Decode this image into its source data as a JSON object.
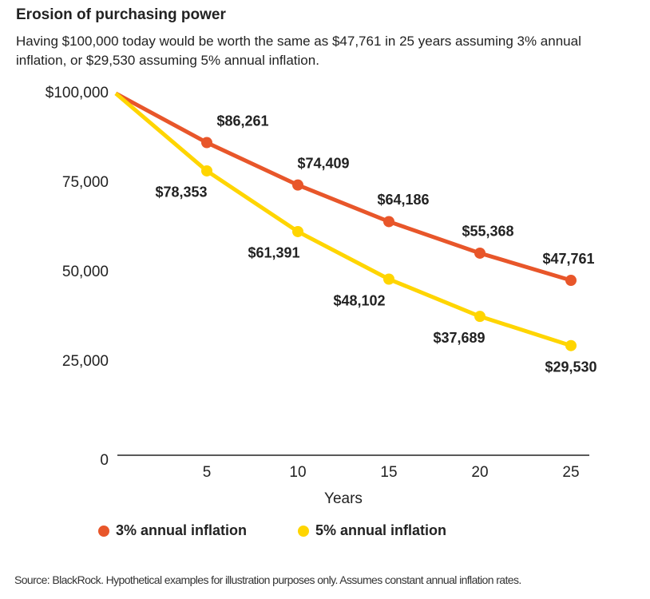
{
  "chart_data": {
    "type": "line",
    "title": "Erosion of purchasing power",
    "subtitle": "Having $100,000 today would be worth the same as $47,761 in 25 years assuming 3% annual inflation, or $29,530 assuming 5% annual inflation.",
    "x_label": "Years",
    "x": [
      0,
      5,
      10,
      15,
      20,
      25
    ],
    "xlim": [
      0,
      25
    ],
    "xticks": [
      5,
      10,
      15,
      20,
      25
    ],
    "ylim": [
      0,
      100000
    ],
    "yticks": [
      0,
      {
        "value": 25000,
        "label": "25,000"
      },
      {
        "value": 50000,
        "label": "50,000"
      },
      {
        "value": 75000,
        "label": "75,000"
      },
      {
        "value": 100000,
        "label": "$100,000"
      }
    ],
    "series": [
      {
        "name": "3% annual inflation",
        "color": "#e8562a",
        "values": [
          100000,
          86261,
          74409,
          64186,
          55368,
          47761
        ],
        "value_labels": [
          null,
          "$86,261",
          "$74,409",
          "$64,186",
          "$55,368",
          "$47,761"
        ]
      },
      {
        "name": "5% annual inflation",
        "color": "#ffd500",
        "values": [
          100000,
          78353,
          61391,
          48102,
          37689,
          29530
        ],
        "value_labels": [
          null,
          "$78,353",
          "$61,391",
          "$48,102",
          "$37,689",
          "$29,530"
        ]
      }
    ],
    "source": "Source: BlackRock. Hypothetical examples for illustration purposes only. Assumes constant annual inflation rates."
  }
}
